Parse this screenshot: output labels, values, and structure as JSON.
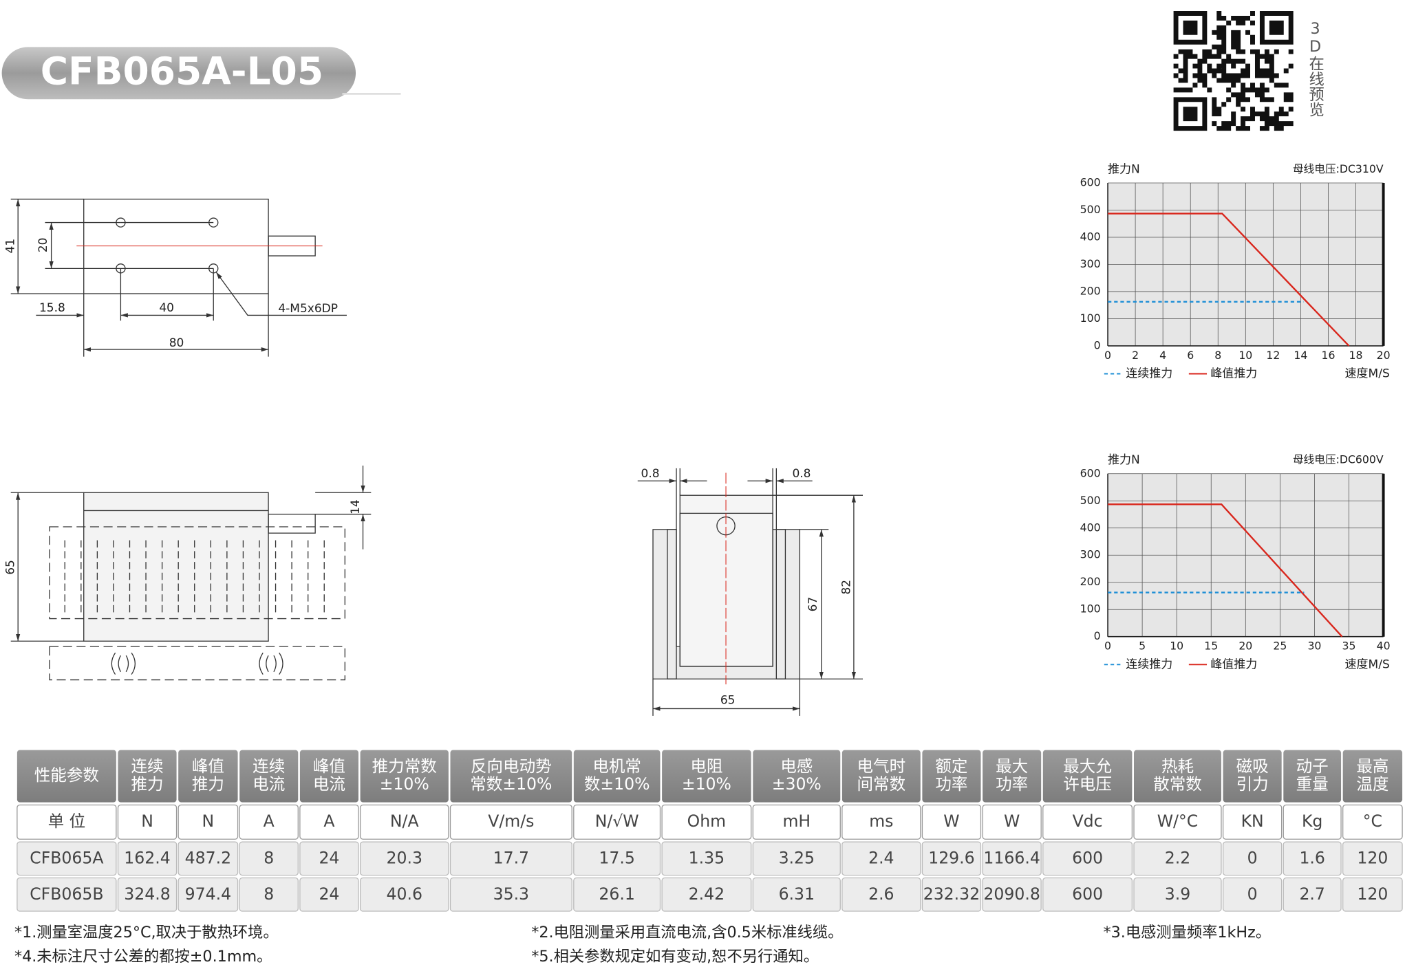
{
  "header": {
    "title": "CFB065A-L05",
    "qr_label": "3D在线预览"
  },
  "drawings": {
    "top_view": {
      "dims": [
        41,
        20,
        15.8,
        40,
        80
      ],
      "callout": "4-M5x6DP"
    },
    "side_view": {
      "dims": [
        65,
        14
      ]
    },
    "front_view": {
      "dims": [
        0.8,
        0.8,
        67,
        82,
        65
      ]
    }
  },
  "chart_data": [
    {
      "type": "line",
      "y_label": "推力N",
      "note": "母线电压:DC310V",
      "x_label": "速度M/S",
      "xlim": [
        0,
        20
      ],
      "xticks": [
        0,
        2,
        4,
        6,
        8,
        10,
        12,
        14,
        16,
        18,
        20
      ],
      "ylim": [
        0,
        600
      ],
      "yticks": [
        0,
        100,
        200,
        300,
        400,
        500,
        600
      ],
      "grid": true,
      "series": [
        {
          "name": "连续推力",
          "color": "#1f8fd6",
          "style": "dashed",
          "x": [
            0,
            14.2
          ],
          "values": [
            162.4,
            162.4
          ]
        },
        {
          "name": "峰值推力",
          "color": "#d9261c",
          "style": "solid",
          "x": [
            0,
            8.3,
            17.5
          ],
          "values": [
            487.2,
            487.2,
            0
          ]
        }
      ]
    },
    {
      "type": "line",
      "y_label": "推力N",
      "note": "母线电压:DC600V",
      "x_label": "速度M/S",
      "xlim": [
        0,
        40
      ],
      "xticks": [
        0,
        5,
        10,
        15,
        20,
        25,
        30,
        35,
        40
      ],
      "ylim": [
        0,
        600
      ],
      "yticks": [
        0,
        100,
        200,
        300,
        400,
        500,
        600
      ],
      "grid": true,
      "series": [
        {
          "name": "连续推力",
          "color": "#1f8fd6",
          "style": "dashed",
          "x": [
            0,
            28.5
          ],
          "values": [
            162.4,
            162.4
          ]
        },
        {
          "name": "峰值推力",
          "color": "#d9261c",
          "style": "solid",
          "x": [
            0,
            16.5,
            34
          ],
          "values": [
            487.2,
            487.2,
            0
          ]
        }
      ]
    }
  ],
  "table": {
    "header": [
      [
        "性能参数"
      ],
      [
        "连续",
        "推力"
      ],
      [
        "峰值",
        "推力"
      ],
      [
        "连续",
        "电流"
      ],
      [
        "峰值",
        "电流"
      ],
      [
        "推力常数",
        "±10%"
      ],
      [
        "反向电动势",
        "常数±10%"
      ],
      [
        "电机常",
        "数±10%"
      ],
      [
        "电阻",
        "±10%"
      ],
      [
        "电感",
        "±30%"
      ],
      [
        "电气时",
        "间常数"
      ],
      [
        "额定",
        "功率"
      ],
      [
        "最大",
        "功率"
      ],
      [
        "最大允",
        "许电压"
      ],
      [
        "热耗",
        "散常数"
      ],
      [
        "磁吸",
        "引力"
      ],
      [
        "动子",
        "重量"
      ],
      [
        "最高",
        "温度"
      ]
    ],
    "units": [
      "单 位",
      "N",
      "N",
      "A",
      "A",
      "N/A",
      "V/m/s",
      "N/√W",
      "Ohm",
      "mH",
      "ms",
      "W",
      "W",
      "Vdc",
      "W/°C",
      "KN",
      "Kg",
      "°C"
    ],
    "rows": [
      [
        "CFB065A",
        162.4,
        487.2,
        8,
        24,
        20.3,
        17.7,
        17.5,
        1.35,
        3.25,
        2.4,
        129.6,
        1166.4,
        600,
        2.2,
        0,
        1.6,
        120
      ],
      [
        "CFB065B",
        324.8,
        974.4,
        8,
        24,
        40.6,
        35.3,
        26.1,
        2.42,
        6.31,
        2.6,
        232.32,
        2090.8,
        600,
        3.9,
        0,
        2.7,
        120
      ]
    ]
  },
  "notes": [
    "*1.测量室温度25°C,取决于散热环境。",
    "*2.电阻测量采用直流电流,含0.5米标准线缆。",
    "*3.电感测量频率1kHz。",
    "*4.未标注尺寸公差的都按±0.1mm。",
    "*5.相关参数规定如有变动,恕不另行通知。"
  ]
}
